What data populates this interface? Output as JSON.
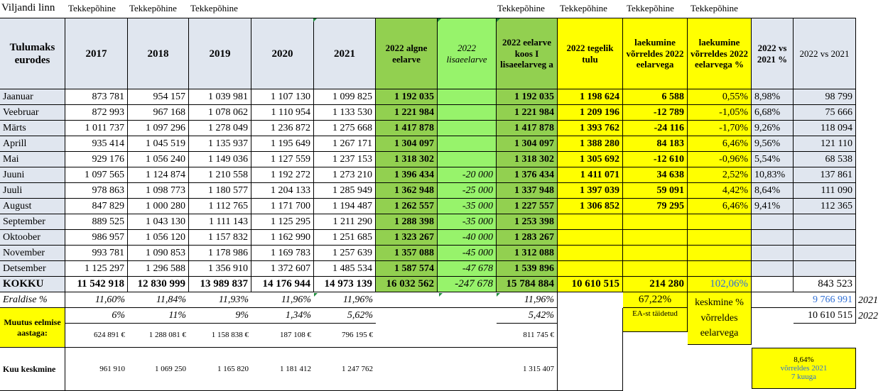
{
  "sheet_title": "Viljandi linn",
  "tekkepohine": "Tekkepõhine",
  "headers": [
    "Tulumaks eurodes",
    "2017",
    "2018",
    "2019",
    "2020",
    "2021",
    "2022 algne eelarve",
    "2022 lisaeelarve",
    "2022 eelarve koos I lisaeelarveg a",
    "2022 tegelik tulu",
    "laekumine võrreldes 2022 eelarvega",
    "laekumine võrreldes 2022 eelarvega %",
    "2022 vs 2021 %",
    "2022 vs 2021"
  ],
  "rows": [
    [
      "Jaanuar",
      "873 781",
      "954 157",
      "1 039 981",
      "1 107 130",
      "1 099 825",
      "1 192 035",
      "",
      "1 192 035",
      "1 198 624",
      "6 588",
      "0,55%",
      "8,98%",
      "98 799"
    ],
    [
      "Veebruar",
      "872 993",
      "967 168",
      "1 078 062",
      "1 110 954",
      "1 133 530",
      "1 221 984",
      "",
      "1 221 984",
      "1 209 196",
      "-12 789",
      "-1,05%",
      "6,68%",
      "75 666"
    ],
    [
      "Märts",
      "1 011 737",
      "1 097 296",
      "1 278 049",
      "1 236 872",
      "1 275 668",
      "1 417 878",
      "",
      "1 417 878",
      "1 393 762",
      "-24 116",
      "-1,70%",
      "9,26%",
      "118 094"
    ],
    [
      "Aprill",
      "935 414",
      "1 045 519",
      "1 135 937",
      "1 195 649",
      "1 267 171",
      "1 304 097",
      "",
      "1 304 097",
      "1 388 280",
      "84 183",
      "6,46%",
      "9,56%",
      "121 110"
    ],
    [
      "Mai",
      "929 176",
      "1 056 240",
      "1 149 036",
      "1 127 559",
      "1 237 153",
      "1 318 302",
      "",
      "1 318 302",
      "1 305 692",
      "-12 610",
      "-0,96%",
      "5,54%",
      "68 538"
    ],
    [
      "Juuni",
      "1 097 565",
      "1 124 874",
      "1 210 558",
      "1 192 272",
      "1 273 210",
      "1 396 434",
      "-20 000",
      "1 376 434",
      "1 411 071",
      "34 638",
      "2,52%",
      "10,83%",
      "137 861"
    ],
    [
      "Juuli",
      "978 863",
      "1 098 773",
      "1 180 577",
      "1 204 133",
      "1 285 949",
      "1 362 948",
      "-25 000",
      "1 337 948",
      "1 397 039",
      "59 091",
      "4,42%",
      "8,64%",
      "111 090"
    ],
    [
      "August",
      "847 829",
      "1 000 280",
      "1 112 765",
      "1 171 700",
      "1 194 487",
      "1 262 557",
      "-35 000",
      "1 227 557",
      "1 306 852",
      "79 295",
      "6,46%",
      "9,41%",
      "112 365"
    ],
    [
      "September",
      "889 525",
      "1 043 130",
      "1 111 143",
      "1 125 295",
      "1 211 290",
      "1 288 398",
      "-35 000",
      "1 253 398",
      "",
      "",
      "",
      "",
      ""
    ],
    [
      "Oktoober",
      "986 957",
      "1 056 120",
      "1 157 832",
      "1 162 990",
      "1 251 685",
      "1 323 267",
      "-40 000",
      "1 283 267",
      "",
      "",
      "",
      "",
      ""
    ],
    [
      "November",
      "993 781",
      "1 090 853",
      "1 178 986",
      "1 169 783",
      "1 257 639",
      "1 357 088",
      "-45 000",
      "1 312 088",
      "",
      "",
      "",
      "",
      ""
    ],
    [
      "Detsember",
      "1 125 297",
      "1 296 588",
      "1 356 910",
      "1 372 607",
      "1 485 534",
      "1 587 574",
      "-47 678",
      "1 539 896",
      "",
      "",
      "",
      "",
      ""
    ]
  ],
  "total": [
    "KOKKU",
    "11 542 918",
    "12 830 999",
    "13 989 837",
    "14 176 944",
    "14 973 139",
    "16 032 562",
    "-247 678",
    "15 784 884",
    "10 610 515",
    "214 280",
    "102,06%",
    "",
    "843 523"
  ],
  "eraldise": {
    "label": "Eraldise %",
    "values": [
      "11,60%",
      "11,84%",
      "11,93%",
      "11,96%",
      "11,96%"
    ],
    "v2022": "11,96%",
    "pct": "67,22%",
    "ea": "EA-st täidetud",
    "keskmine": "keskmine % võrreldes eelarvega",
    "val_2021": "9 766 991",
    "year_2021": "2021",
    "val_2022": "10 610 515",
    "year_2022": "2022"
  },
  "muutus": {
    "label": "Muutus eelmise aastaga:",
    "pct": [
      "6%",
      "11%",
      "9%",
      "1,34%",
      "5,62%"
    ],
    "pct2022": "5,42%",
    "eur": [
      "624 891 €",
      "1 288 081 €",
      "1 158 838 €",
      "187 108 €",
      "796 195 €"
    ],
    "eur2022": "811 745 €"
  },
  "kuu": {
    "label": "Kuu keskmine",
    "values": [
      "961 910",
      "1 069 250",
      "1 165 820",
      "1 181 412",
      "1 247 762"
    ],
    "v2022": "1 315 407"
  },
  "note": {
    "pct": "8,64%",
    "line1": "võrreldes 2021",
    "line2": "7 kuuga"
  }
}
